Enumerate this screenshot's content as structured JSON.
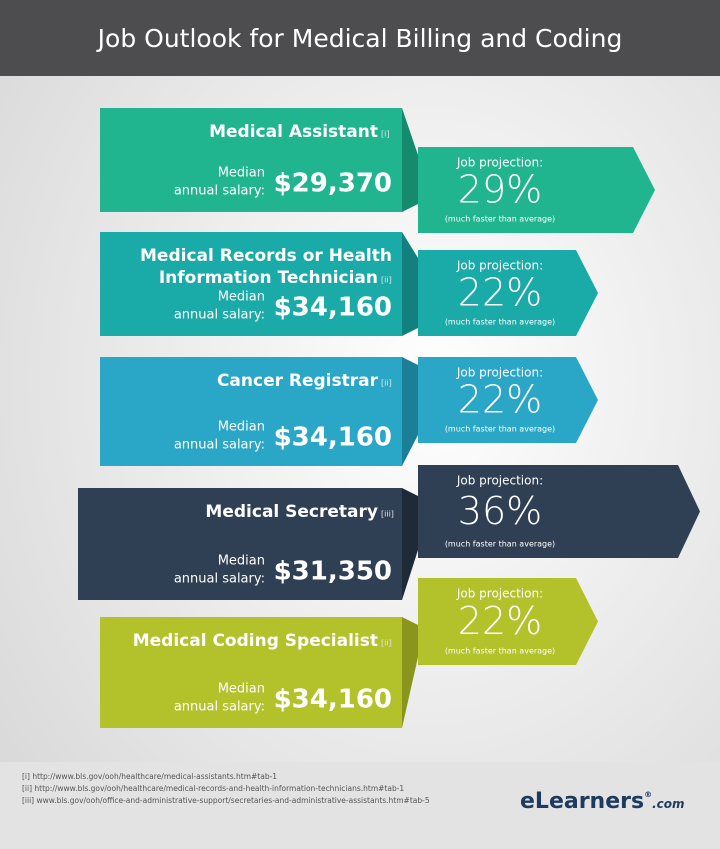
{
  "header": {
    "title": "Job Outlook for Medical Billing and Coding"
  },
  "jobs": [
    {
      "title_lines": [
        "Medical Assistant"
      ],
      "ref": "[i]",
      "median_lines": [
        "Median",
        "annual salary:"
      ],
      "salary": "$29,370",
      "projection_label": "Job projection:",
      "projection": "29%",
      "projection_note": "(much faster than average)"
    },
    {
      "title_lines": [
        "Medical Records or Health",
        "Information Technician"
      ],
      "ref": "[ii]",
      "median_lines": [
        "Median",
        "annual salary:"
      ],
      "salary": "$34,160",
      "projection_label": "Job projection:",
      "projection": "22%",
      "projection_note": "(much faster than average)"
    },
    {
      "title_lines": [
        "Cancer Registrar"
      ],
      "ref": "[ii]",
      "median_lines": [
        "Median",
        "annual salary:"
      ],
      "salary": "$34,160",
      "projection_label": "Job projection:",
      "projection": "22%",
      "projection_note": "(much faster than average)"
    },
    {
      "title_lines": [
        "Medical Secretary"
      ],
      "ref": "[iii]",
      "median_lines": [
        "Median",
        "annual salary:"
      ],
      "salary": "$31,350",
      "projection_label": "Job projection:",
      "projection": "36%",
      "projection_note": "(much faster than average)"
    },
    {
      "title_lines": [
        "Medical Coding Specialist"
      ],
      "ref": "[ii]",
      "median_lines": [
        "Median",
        "annual salary:"
      ],
      "salary": "$34,160",
      "projection_label": "Job projection:",
      "projection": "22%",
      "projection_note": "(much faster than average)"
    }
  ],
  "footer": {
    "notes": [
      "[i] http://www.bls.gov/ooh/healthcare/medical-assistants.htm#tab-1",
      "[ii] http://www.bls.gov/ooh/healthcare/medical-records-and-health-information-technicians.htm#tab-1",
      "[iii] www.bls.gov/ooh/office-and-administrative-support/secretaries-and-administrative-assistants.htm#tab-5"
    ],
    "logo": {
      "name": "eLearners",
      "mark": "®",
      "suffix": ".com"
    }
  }
}
